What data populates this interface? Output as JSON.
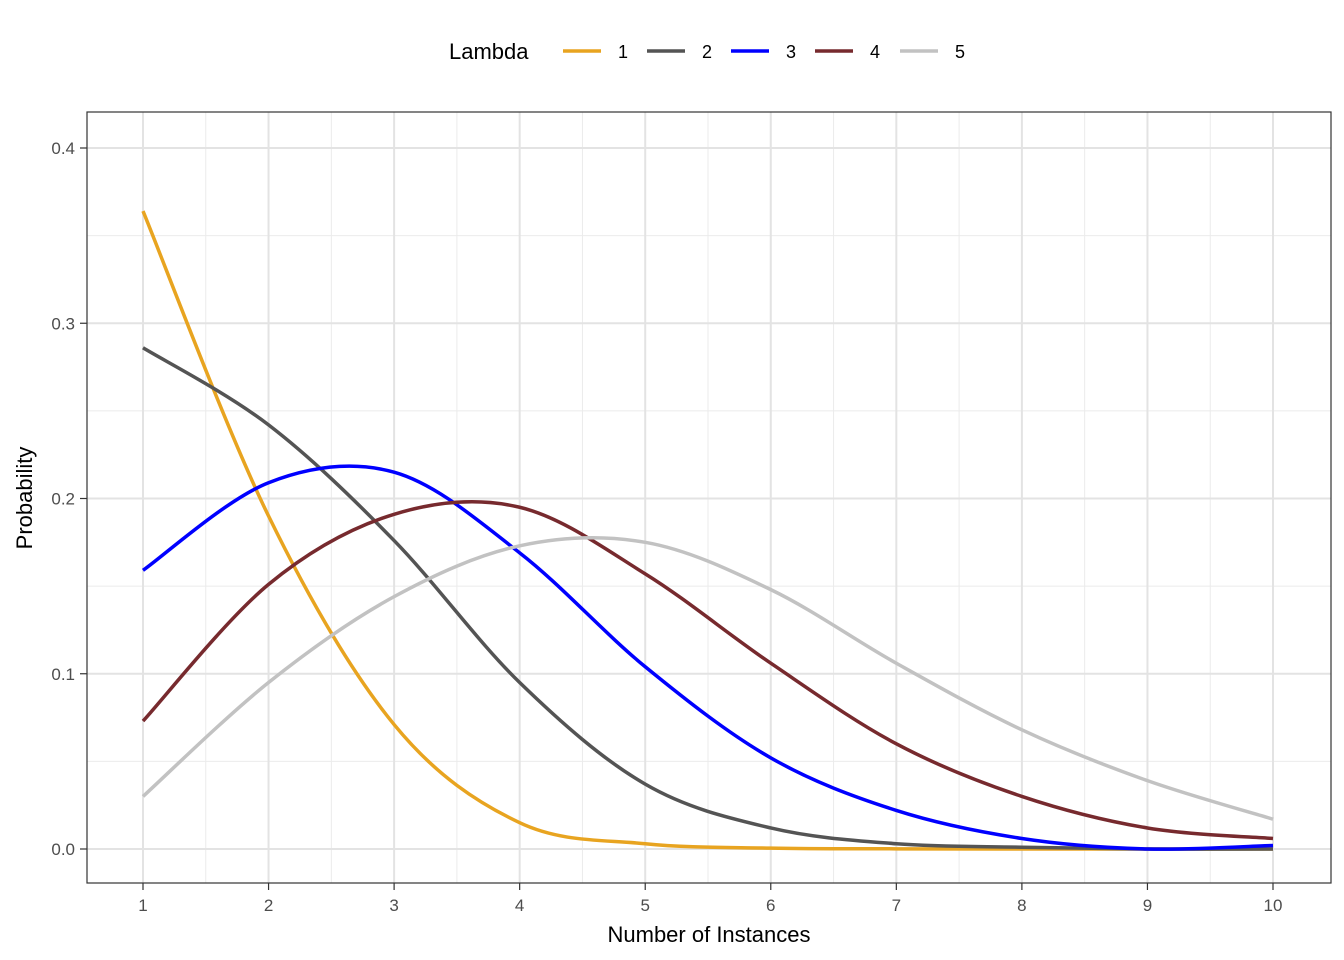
{
  "chart_data": {
    "type": "line",
    "title": "",
    "xlabel": "Number of Instances",
    "ylabel": "Probability",
    "xlim": [
      1,
      10
    ],
    "ylim": [
      0,
      0.4
    ],
    "x": [
      1,
      2,
      3,
      4,
      5,
      6,
      7,
      8,
      9,
      10
    ],
    "x_ticks": [
      "1",
      "2",
      "3",
      "4",
      "5",
      "6",
      "7",
      "8",
      "9",
      "10"
    ],
    "y_ticks": [
      "0.0",
      "0.1",
      "0.2",
      "0.3",
      "0.4"
    ],
    "y_tick_values": [
      0,
      0.1,
      0.2,
      0.3,
      0.4
    ],
    "grid": true,
    "legend": {
      "title": "Lambda",
      "placement": "top"
    },
    "series": [
      {
        "name": "1",
        "color": "#E8A420",
        "values": [
          0.364,
          0.19,
          0.071,
          0.015,
          0.003,
          0.0005,
          0.0001,
          0,
          0,
          0
        ]
      },
      {
        "name": "2",
        "color": "#545454",
        "values": [
          0.286,
          0.242,
          0.176,
          0.095,
          0.037,
          0.012,
          0.003,
          0.001,
          0,
          0
        ]
      },
      {
        "name": "3",
        "color": "#0000FF",
        "values": [
          0.159,
          0.209,
          0.215,
          0.169,
          0.104,
          0.052,
          0.022,
          0.006,
          0,
          0.002
        ]
      },
      {
        "name": "4",
        "color": "#772A2E",
        "values": [
          0.073,
          0.151,
          0.191,
          0.195,
          0.157,
          0.106,
          0.06,
          0.03,
          0.012,
          0.006
        ]
      },
      {
        "name": "5",
        "color": "#C2C2C2",
        "values": [
          0.03,
          0.095,
          0.144,
          0.173,
          0.175,
          0.148,
          0.106,
          0.068,
          0.039,
          0.017
        ]
      }
    ]
  }
}
